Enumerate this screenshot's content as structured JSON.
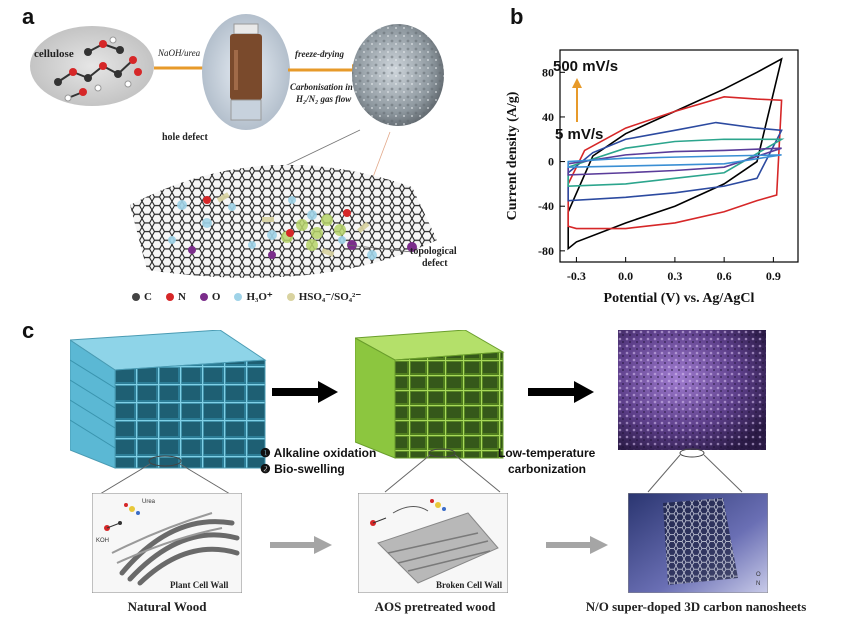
{
  "panel_a": {
    "letter": "a",
    "cellulose": "cellulose",
    "step1": "NaOH/urea",
    "step2": "freeze-drying",
    "step3_line1": "Carbonisation in",
    "step3_line2": "H₂/N₂ gas flow",
    "hole_defect": "hole defect",
    "topological_line1": "topological",
    "topological_line2": "defect",
    "legend": [
      {
        "label": "C",
        "color": "#444444"
      },
      {
        "label": "N",
        "color": "#d62728"
      },
      {
        "label": "O",
        "color": "#7b2d8b"
      },
      {
        "label": "H₃O⁺",
        "color": "#9fd3e8"
      },
      {
        "label": "HSO₄⁻/SO₄²⁻",
        "color": "#d9d3a0"
      }
    ]
  },
  "panel_b": {
    "letter": "b",
    "annotation_high": "500 mV/s",
    "annotation_low": "5 mV/s"
  },
  "panel_c": {
    "letter": "c",
    "step1": "❶ Alkaline oxidation",
    "step2": "❷ Bio-swelling",
    "step3_line1": "Low-temperature",
    "step3_line2": "carbonization",
    "urea": "Urea",
    "koh": "KOH",
    "plant_cell_wall": "Plant Cell Wall",
    "broken_cell_wall": "Broken Cell Wall",
    "o_label": "O",
    "n_label": "N",
    "caption_1": "Natural Wood",
    "caption_2": "AOS pretreated wood",
    "caption_3": "N/O super-doped 3D carbon nanosheets",
    "colors": {
      "natural": "#5bb8d4",
      "pretreated": "#8cc63f",
      "carbon": "#6b4a9a"
    }
  },
  "chart_data": {
    "type": "line",
    "title": "",
    "xlabel": "Potential (V) vs. Ag/AgCl",
    "ylabel": "Current density (A/g)",
    "xlim": [
      -0.4,
      1.05
    ],
    "ylim": [
      -90,
      100
    ],
    "xticks": [
      -0.3,
      0.0,
      0.3,
      0.6,
      0.9
    ],
    "xtick_labels": [
      "-0.3",
      "0.0",
      "0.3",
      "0.6",
      "0.9"
    ],
    "yticks": [
      -80,
      -40,
      0,
      40,
      80
    ],
    "ytick_labels": [
      "-80",
      "-40",
      "0",
      "40",
      "80"
    ],
    "grid": false,
    "series": [
      {
        "color": "#000000",
        "upper": [
          [
            -0.35,
            -45
          ],
          [
            -0.2,
            5
          ],
          [
            0.0,
            25
          ],
          [
            0.3,
            45
          ],
          [
            0.6,
            65
          ],
          [
            0.8,
            80
          ],
          [
            0.95,
            92
          ]
        ],
        "lower": [
          [
            -0.35,
            -78
          ],
          [
            -0.3,
            -72
          ],
          [
            0.0,
            -55
          ],
          [
            0.3,
            -40
          ],
          [
            0.6,
            -20
          ],
          [
            0.8,
            0
          ],
          [
            0.95,
            92
          ]
        ]
      },
      {
        "color": "#d62728",
        "upper": [
          [
            -0.35,
            -20
          ],
          [
            -0.25,
            10
          ],
          [
            0.0,
            30
          ],
          [
            0.3,
            45
          ],
          [
            0.6,
            58
          ],
          [
            0.8,
            56
          ],
          [
            0.95,
            55
          ]
        ],
        "lower": [
          [
            -0.35,
            -58
          ],
          [
            -0.3,
            -60
          ],
          [
            0.0,
            -60
          ],
          [
            0.3,
            -55
          ],
          [
            0.6,
            -45
          ],
          [
            0.8,
            -35
          ],
          [
            0.92,
            -30
          ],
          [
            0.95,
            55
          ]
        ]
      },
      {
        "color": "#2c4aa0",
        "upper": [
          [
            -0.35,
            -10
          ],
          [
            -0.2,
            8
          ],
          [
            0.0,
            20
          ],
          [
            0.3,
            28
          ],
          [
            0.55,
            35
          ],
          [
            0.8,
            30
          ],
          [
            0.95,
            28
          ]
        ],
        "lower": [
          [
            -0.35,
            -35
          ],
          [
            0.0,
            -32
          ],
          [
            0.3,
            -28
          ],
          [
            0.6,
            -22
          ],
          [
            0.8,
            -15
          ],
          [
            0.95,
            28
          ]
        ]
      },
      {
        "color": "#2ca58d",
        "upper": [
          [
            -0.35,
            -5
          ],
          [
            0.0,
            12
          ],
          [
            0.3,
            18
          ],
          [
            0.6,
            20
          ],
          [
            0.95,
            20
          ]
        ],
        "lower": [
          [
            -0.35,
            -22
          ],
          [
            0.0,
            -20
          ],
          [
            0.3,
            -15
          ],
          [
            0.6,
            -10
          ],
          [
            0.95,
            20
          ]
        ]
      },
      {
        "color": "#5a3c9a",
        "upper": [
          [
            -0.35,
            -2
          ],
          [
            0.0,
            6
          ],
          [
            0.3,
            9
          ],
          [
            0.6,
            10
          ],
          [
            0.95,
            12
          ]
        ],
        "lower": [
          [
            -0.35,
            -12
          ],
          [
            0.0,
            -10
          ],
          [
            0.3,
            -8
          ],
          [
            0.6,
            -5
          ],
          [
            0.95,
            12
          ]
        ]
      },
      {
        "color": "#3a8fd4",
        "upper": [
          [
            -0.35,
            0
          ],
          [
            0.0,
            3
          ],
          [
            0.3,
            4
          ],
          [
            0.6,
            5
          ],
          [
            0.95,
            6
          ]
        ],
        "lower": [
          [
            -0.35,
            -5
          ],
          [
            0.0,
            -4
          ],
          [
            0.3,
            -3
          ],
          [
            0.6,
            -2
          ],
          [
            0.95,
            6
          ]
        ]
      }
    ]
  }
}
